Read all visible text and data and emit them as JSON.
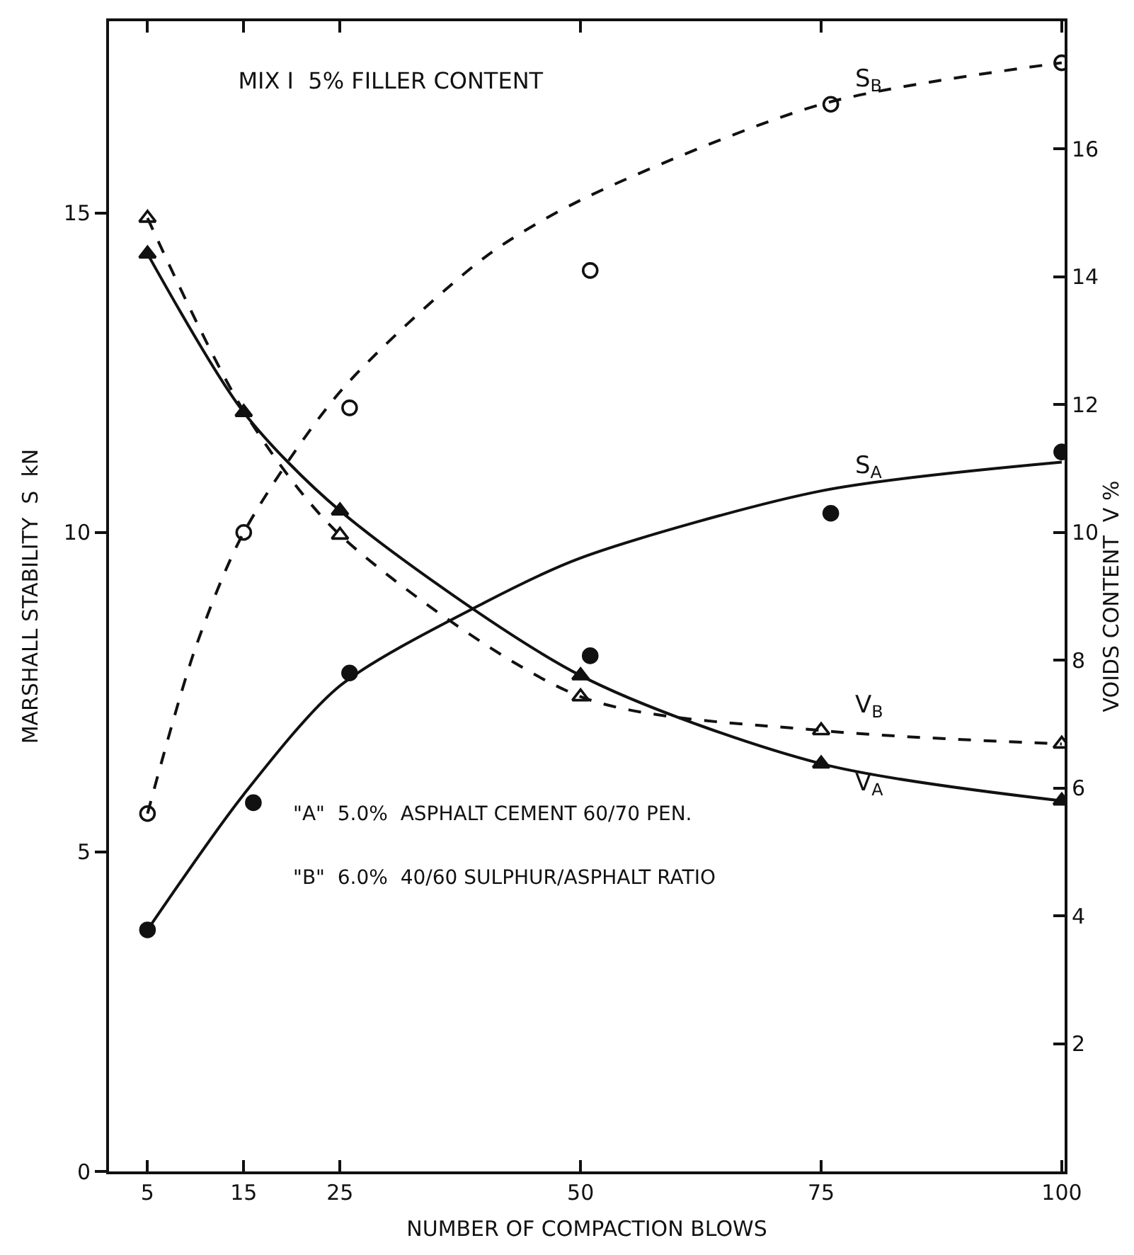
{
  "chart_data": {
    "type": "line",
    "title": "MIX I  5% FILLER CONTENT",
    "xlabel": "NUMBER OF COMPACTION BLOWS",
    "ylabel": "MARSHALL STABILITY  S  kN",
    "y2label": "VOIDS CONTENT  V %",
    "xlim": [
      1,
      100.3
    ],
    "xticks": [
      5,
      15,
      25,
      50,
      75,
      100
    ],
    "ylim": [
      0,
      18
    ],
    "yticks": [
      0,
      5,
      10,
      15
    ],
    "y2lim": [
      0,
      18
    ],
    "y2ticks": [
      2,
      4,
      6,
      8,
      10,
      12,
      14,
      16
    ],
    "grid": false,
    "legend": false,
    "series": [
      {
        "name": "S$_{B}$",
        "line_style": "dashed",
        "marker": "none",
        "color": "#111111",
        "x": [
          5,
          10,
          15,
          25,
          40,
          50,
          75,
          100
        ],
        "values": [
          5.6,
          8.2,
          10.0,
          12.2,
          14.3,
          15.2,
          16.7,
          17.35
        ]
      },
      {
        "name": "S$_{A}$",
        "line_style": "solid",
        "marker": "none",
        "color": "#111111",
        "x": [
          5,
          15,
          25,
          40,
          50,
          75,
          100
        ],
        "values": [
          3.78,
          5.9,
          7.6,
          8.9,
          9.6,
          10.65,
          11.1
        ]
      },
      {
        "name": "V$_{B}$",
        "axis": "y2",
        "line_style": "dashed",
        "marker": "none",
        "color": "#111111",
        "x": [
          5,
          15,
          25,
          50,
          75,
          100
        ],
        "values": [
          14.92,
          11.9,
          9.96,
          7.43,
          6.9,
          6.69
        ]
      },
      {
        "name": "V$_{A}$",
        "axis": "y2",
        "line_style": "solid",
        "marker": "none",
        "color": "#111111",
        "x": [
          5,
          15,
          25,
          50,
          75,
          100
        ],
        "values": [
          14.36,
          11.88,
          10.34,
          7.76,
          6.38,
          5.8
        ]
      },
      {
        "type": "scatter",
        "marker": "circle-open",
        "color": "#111111",
        "x": [
          5,
          15,
          26,
          51,
          76,
          100
        ],
        "values": [
          5.6,
          10.0,
          11.95,
          14.1,
          16.7,
          17.35
        ]
      },
      {
        "type": "scatter",
        "marker": "circle",
        "color": "#111111",
        "x": [
          5,
          16,
          26,
          51,
          76,
          100
        ],
        "values": [
          3.78,
          5.77,
          7.8,
          8.07,
          10.3,
          11.26
        ]
      },
      {
        "type": "scatter",
        "axis": "y2",
        "marker": "triangle-open",
        "color": "#111111",
        "x": [
          5,
          25,
          50,
          75,
          100
        ],
        "values": [
          14.92,
          9.96,
          7.43,
          6.9,
          6.69
        ]
      },
      {
        "type": "scatter",
        "axis": "y2",
        "marker": "triangle",
        "color": "#111111",
        "x": [
          5,
          15,
          25,
          50,
          75,
          100
        ],
        "values": [
          14.36,
          11.88,
          10.34,
          7.76,
          6.38,
          5.8
        ]
      }
    ],
    "annotations": [
      "\"A\"  5.0%  ASPHALT CEMENT 60/70 PEN.",
      "\"B\"  6.0%  40/60 SULPHUR/ASPHALT RATIO"
    ]
  }
}
